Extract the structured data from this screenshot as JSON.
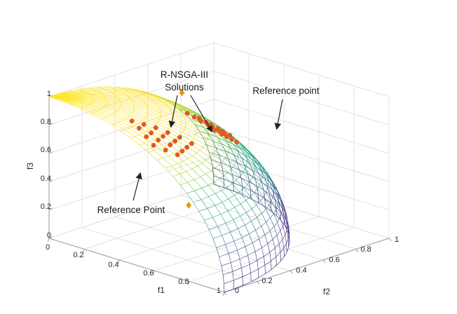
{
  "chart_data": {
    "type": "scatter3d",
    "title": "",
    "axes": {
      "x": {
        "label": "f1",
        "ticks": [
          "0",
          "0.2",
          "0.4",
          "0.6",
          "0.8",
          "1"
        ],
        "lim": [
          0,
          1
        ]
      },
      "y": {
        "label": "f2",
        "ticks": [
          "0",
          "0.2",
          "0.4",
          "0.6",
          "0.8",
          "1"
        ],
        "lim": [
          0,
          1
        ]
      },
      "z": {
        "label": "f3",
        "ticks": [
          "0",
          "0.2",
          "0.4",
          "0.6",
          "0.8",
          "1"
        ],
        "lim": [
          0,
          1
        ]
      }
    },
    "grid": true,
    "surface": {
      "name": "Pareto front",
      "equation": "f1^2 + f2^2 + f3^2 = 1",
      "style": "mesh",
      "colormap": [
        "#fde725",
        "#ffd700",
        "#b5de2b",
        "#35b779",
        "#1fa187",
        "#31688e",
        "#443983",
        "#3b0f70"
      ]
    },
    "series": [
      {
        "marker": "circle",
        "color": "#e05a1f",
        "points": [
          [
            0.36,
            0.12,
            0.92
          ],
          [
            0.42,
            0.1,
            0.9
          ],
          [
            0.48,
            0.08,
            0.87
          ],
          [
            0.54,
            0.06,
            0.84
          ],
          [
            0.4,
            0.15,
            0.9
          ],
          [
            0.46,
            0.13,
            0.87
          ],
          [
            0.52,
            0.11,
            0.85
          ],
          [
            0.58,
            0.09,
            0.81
          ],
          [
            0.44,
            0.18,
            0.88
          ],
          [
            0.5,
            0.16,
            0.85
          ],
          [
            0.56,
            0.14,
            0.82
          ],
          [
            0.62,
            0.12,
            0.78
          ],
          [
            0.48,
            0.21,
            0.85
          ],
          [
            0.54,
            0.19,
            0.82
          ],
          [
            0.6,
            0.17,
            0.78
          ],
          [
            0.52,
            0.24,
            0.82
          ],
          [
            0.58,
            0.22,
            0.78
          ],
          [
            0.56,
            0.27,
            0.78
          ]
        ]
      },
      {
        "marker": "circle",
        "color": "#e05a1f",
        "points": [
          [
            0.3,
            0.52,
            0.8
          ],
          [
            0.33,
            0.56,
            0.76
          ],
          [
            0.36,
            0.6,
            0.71
          ],
          [
            0.39,
            0.64,
            0.66
          ],
          [
            0.33,
            0.53,
            0.78
          ],
          [
            0.36,
            0.57,
            0.74
          ],
          [
            0.39,
            0.61,
            0.69
          ],
          [
            0.42,
            0.65,
            0.64
          ],
          [
            0.36,
            0.54,
            0.76
          ],
          [
            0.39,
            0.58,
            0.71
          ],
          [
            0.42,
            0.62,
            0.66
          ],
          [
            0.45,
            0.66,
            0.6
          ],
          [
            0.39,
            0.55,
            0.74
          ],
          [
            0.42,
            0.59,
            0.69
          ],
          [
            0.45,
            0.63,
            0.63
          ],
          [
            0.42,
            0.56,
            0.71
          ],
          [
            0.45,
            0.6,
            0.66
          ],
          [
            0.45,
            0.57,
            0.69
          ]
        ]
      },
      {
        "marker": "diamond",
        "color": "#e69a0f",
        "points": [
          [
            0.75,
            0.05,
            0.5
          ],
          [
            0.1,
            0.7,
            0.8
          ]
        ]
      }
    ],
    "annotations": [
      {
        "text": "R-NSGA-III"
      },
      {
        "text": "Solutions"
      },
      {
        "text": "Reference point"
      },
      {
        "text": "Reference Point"
      }
    ]
  }
}
